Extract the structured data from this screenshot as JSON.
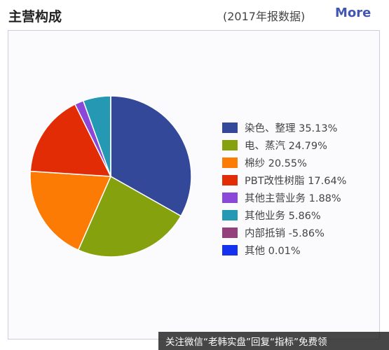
{
  "header": {
    "title": "主营构成",
    "note": "(2017年报数据)",
    "more_label": "More"
  },
  "chart_data": {
    "type": "pie",
    "labels": [
      "染色、整理",
      "电、蒸汽",
      "棉纱",
      "PBT改性树脂",
      "其他主营业务",
      "其他业务",
      "内部抵销",
      "其他"
    ],
    "values": [
      35.13,
      24.79,
      20.55,
      17.64,
      1.88,
      5.86,
      -5.86,
      0.01
    ],
    "value_labels": [
      "35.13%",
      "24.79%",
      "20.55%",
      "17.64%",
      "1.88%",
      "5.86%",
      "-5.86%",
      "0.01%"
    ],
    "colors": [
      "#34489a",
      "#86a10e",
      "#fb7b05",
      "#e12c06",
      "#8a47d8",
      "#2598b3",
      "#94407d",
      "#1331ee"
    ],
    "legend_position": "right"
  },
  "watermark": {
    "text": "关注微信“老韩实盘”回复“指标”免费领"
  }
}
